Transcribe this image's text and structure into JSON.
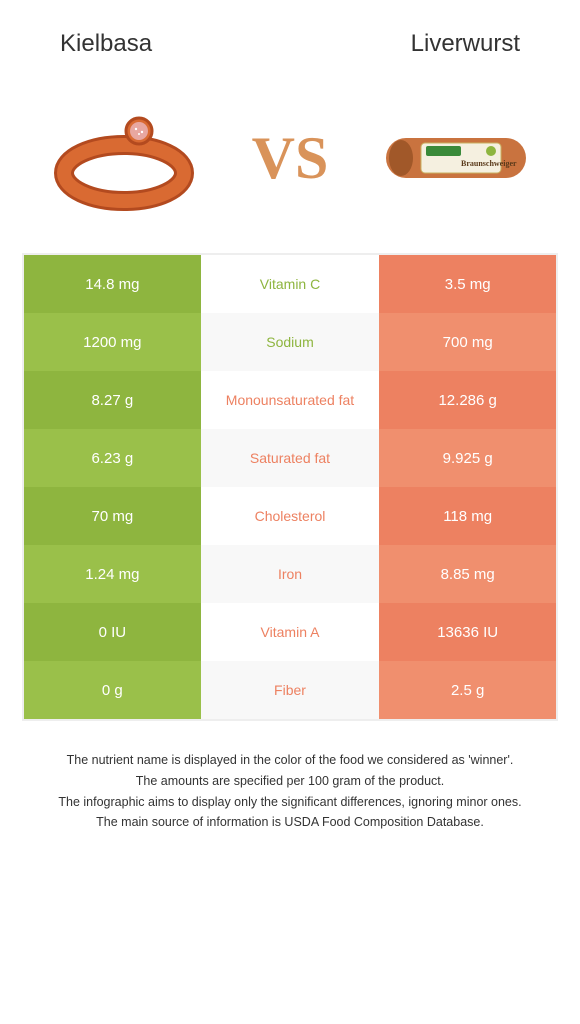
{
  "colors": {
    "left": "#8eb53f",
    "left_alt": "#9ac04a",
    "right": "#ed8161",
    "right_alt": "#f08f6e",
    "mid_left_text": "#8eb53f",
    "mid_right_text": "#ed8161",
    "vs": "#d9935a"
  },
  "header": {
    "left_title": "Kielbasa",
    "right_title": "Liverwurst",
    "vs_text": "VS"
  },
  "rows": [
    {
      "left": "14.8 mg",
      "label": "Vitamin C",
      "right": "3.5 mg",
      "winner": "left"
    },
    {
      "left": "1200 mg",
      "label": "Sodium",
      "right": "700 mg",
      "winner": "left"
    },
    {
      "left": "8.27 g",
      "label": "Monounsaturated fat",
      "right": "12.286 g",
      "winner": "right"
    },
    {
      "left": "6.23 g",
      "label": "Saturated fat",
      "right": "9.925 g",
      "winner": "right"
    },
    {
      "left": "70 mg",
      "label": "Cholesterol",
      "right": "118 mg",
      "winner": "right"
    },
    {
      "left": "1.24 mg",
      "label": "Iron",
      "right": "8.85 mg",
      "winner": "right"
    },
    {
      "left": "0 IU",
      "label": "Vitamin A",
      "right": "13636 IU",
      "winner": "right"
    },
    {
      "left": "0 g",
      "label": "Fiber",
      "right": "2.5 g",
      "winner": "right"
    }
  ],
  "footer": {
    "line1": "The nutrient name is displayed in the color of the food we considered as 'winner'.",
    "line2": "The amounts are specified per 100 gram of the product.",
    "line3": "The infographic aims to display only the significant differences, ignoring minor ones.",
    "line4": "The main source of information is USDA Food Composition Database."
  }
}
